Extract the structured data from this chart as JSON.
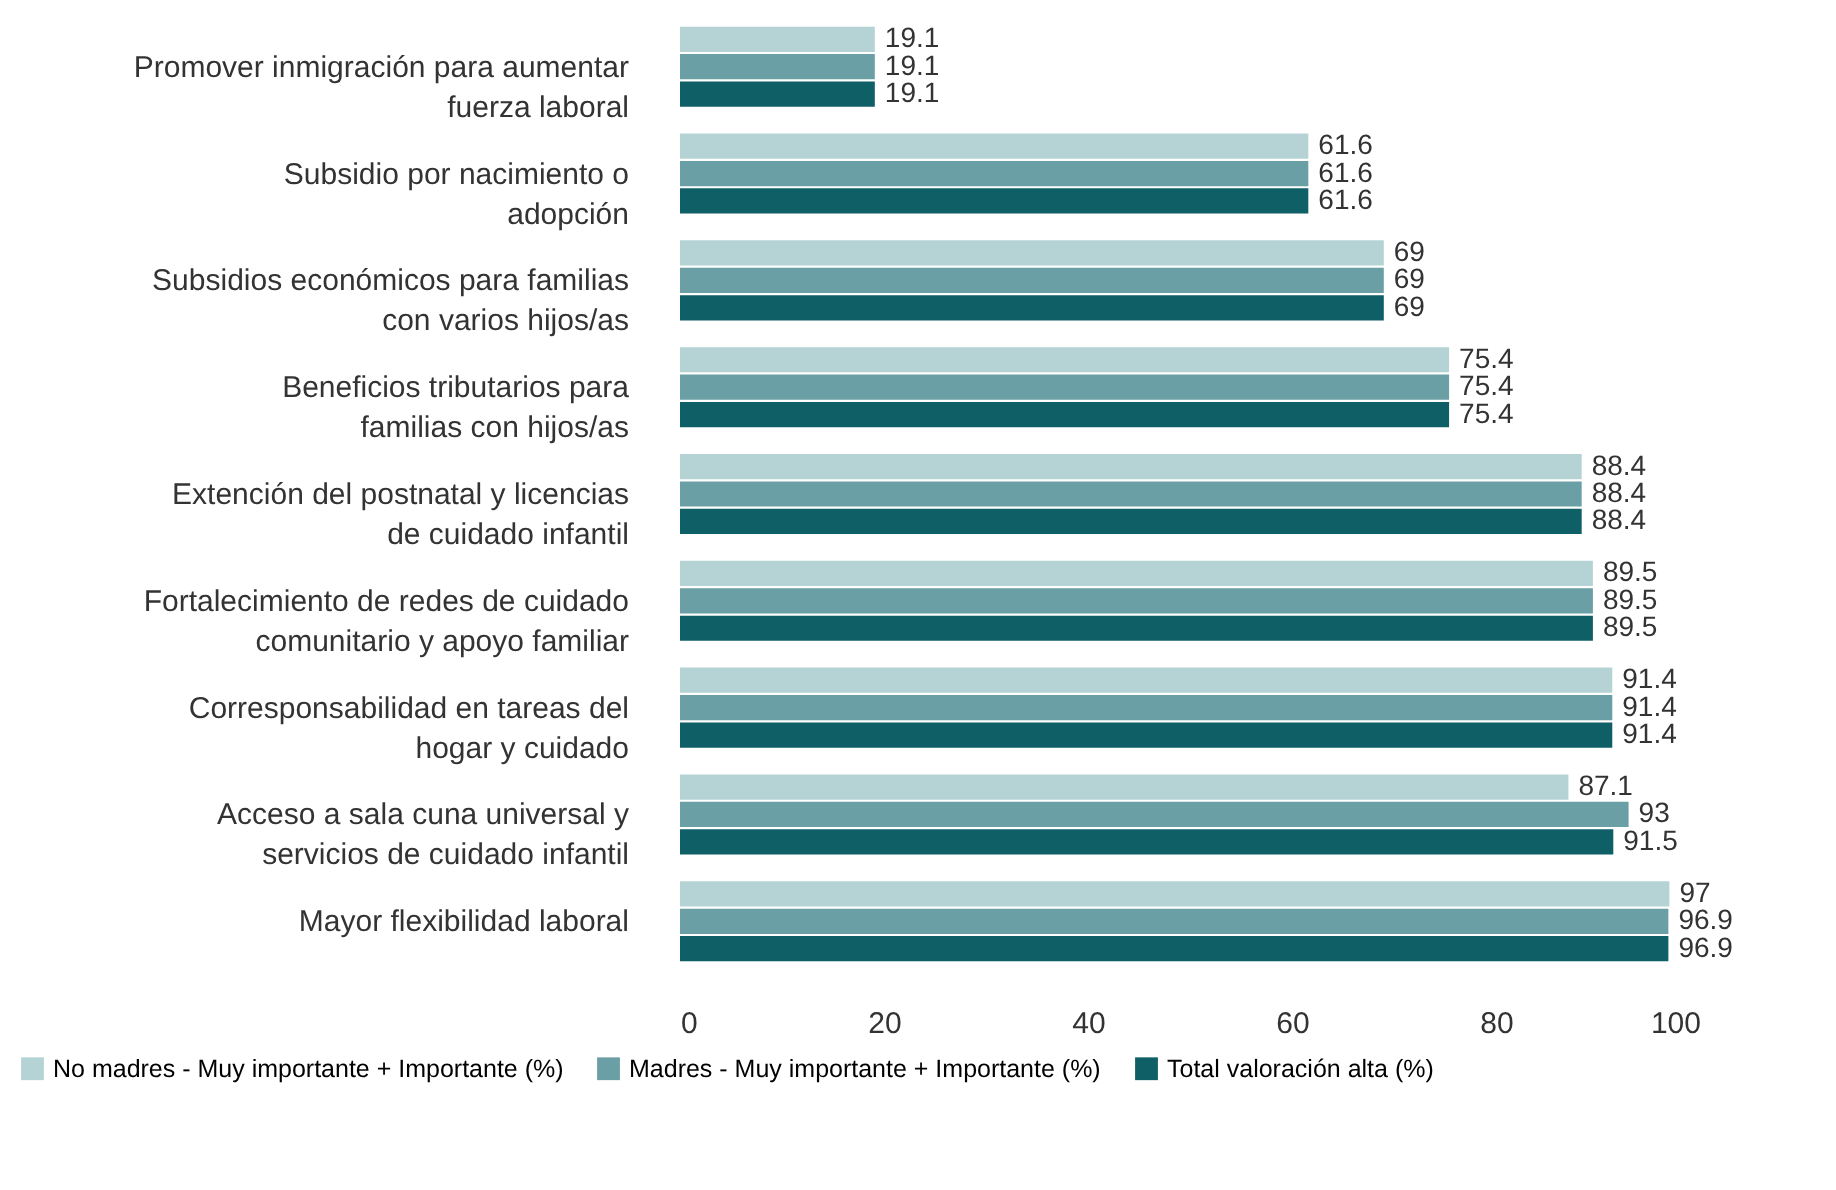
{
  "chart_data": {
    "type": "bar",
    "orientation": "horizontal",
    "categories": [
      "Promover inmigración para aumentar fuerza laboral",
      "Subsidio por nacimiento o adopción",
      "Subsidios económicos para familias con varios hijos/as",
      "Beneficios tributarios para familias con hijos/as",
      "Extención del postnatal y licencias de cuidado infantil",
      "Fortalecimiento de redes de cuidado comunitario y apoyo familiar",
      "Corresponsabilidad en tareas del hogar y cuidado",
      "Acceso a sala cuna universal y servicios de cuidado infantil",
      "Mayor flexibilidad laboral"
    ],
    "series": [
      {
        "name": "No madres - Muy importante + Importante (%)",
        "color": "#b5d3d5",
        "values": [
          19.1,
          61.6,
          69,
          75.4,
          88.4,
          89.5,
          91.4,
          87.1,
          97
        ]
      },
      {
        "name": "Madres - Muy importante + Importante (%)",
        "color": "#6a9fa5",
        "values": [
          19.1,
          61.6,
          69,
          75.4,
          88.4,
          89.5,
          91.4,
          93,
          96.9
        ]
      },
      {
        "name": "Total valoración alta (%)",
        "color": "#0f5f66",
        "values": [
          19.1,
          61.6,
          69,
          75.4,
          88.4,
          89.5,
          91.4,
          91.5,
          96.9
        ]
      }
    ],
    "xlim": [
      0,
      100
    ],
    "xticks": [
      0,
      20,
      40,
      60,
      80,
      100
    ],
    "data_labels": true,
    "legend": "bottom"
  }
}
